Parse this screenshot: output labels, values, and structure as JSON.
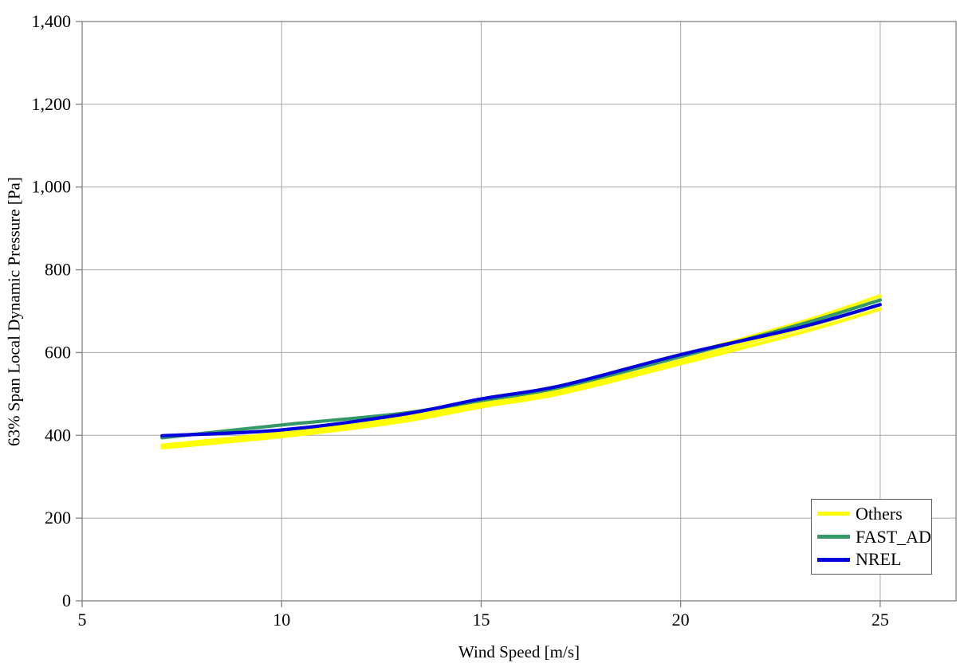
{
  "page": {
    "background": "#ffffff"
  },
  "chart_data": {
    "type": "line",
    "title": "",
    "xlabel": "Wind Speed [m/s]",
    "ylabel": "63% Span Local Dynamic Pressure [Pa]",
    "xlim": [
      5,
      26.9
    ],
    "ylim": [
      0,
      1400
    ],
    "xticks": [
      5,
      10,
      15,
      20,
      25
    ],
    "yticks": [
      0,
      200,
      400,
      600,
      800,
      1000,
      1200,
      1400
    ],
    "grid": true,
    "legend_position": "bottom-right",
    "x": [
      7,
      10,
      13,
      15,
      17,
      20,
      23,
      25
    ],
    "series": [
      {
        "name": "Others",
        "color": "#FFFF00",
        "lines": [
          [
            376,
            406,
            443,
            479,
            513,
            592,
            673,
            737
          ],
          [
            373,
            401,
            438,
            474,
            507,
            581,
            658,
            715
          ],
          [
            370,
            397,
            433,
            469,
            501,
            573,
            648,
            705
          ]
        ]
      },
      {
        "name": "FAST_AD",
        "color": "#339966",
        "lines": [
          [
            394,
            425,
            453,
            484,
            516,
            590,
            668,
            727
          ]
        ]
      },
      {
        "name": "NREL",
        "color": "#0000DD",
        "lines": [
          [
            399,
            413,
            450,
            488,
            520,
            595,
            661,
            716
          ]
        ]
      }
    ],
    "colors": {
      "gridline": "#A6A6A6",
      "axis": "#808080",
      "text": "#000000"
    }
  }
}
